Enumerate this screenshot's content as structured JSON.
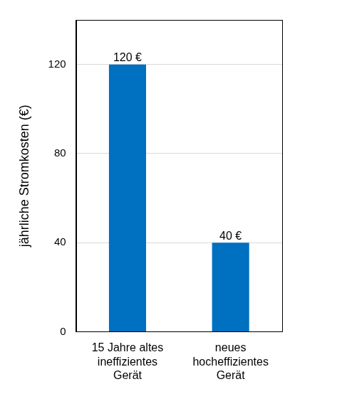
{
  "chart_data": {
    "type": "bar",
    "y_label": "jährliche Stromkosten (€)",
    "categories": [
      [
        "15 Jahre altes",
        "ineffizientes",
        "Gerät"
      ],
      [
        "neues",
        "hocheffizientes",
        "Gerät"
      ]
    ],
    "values": [
      120,
      40
    ],
    "value_labels": [
      "120 €",
      "40 €"
    ],
    "data_labels": true,
    "color": "#0070c0",
    "ylim": [
      0,
      140
    ],
    "yticks": [
      0,
      40,
      80,
      120
    ],
    "grid": true
  }
}
